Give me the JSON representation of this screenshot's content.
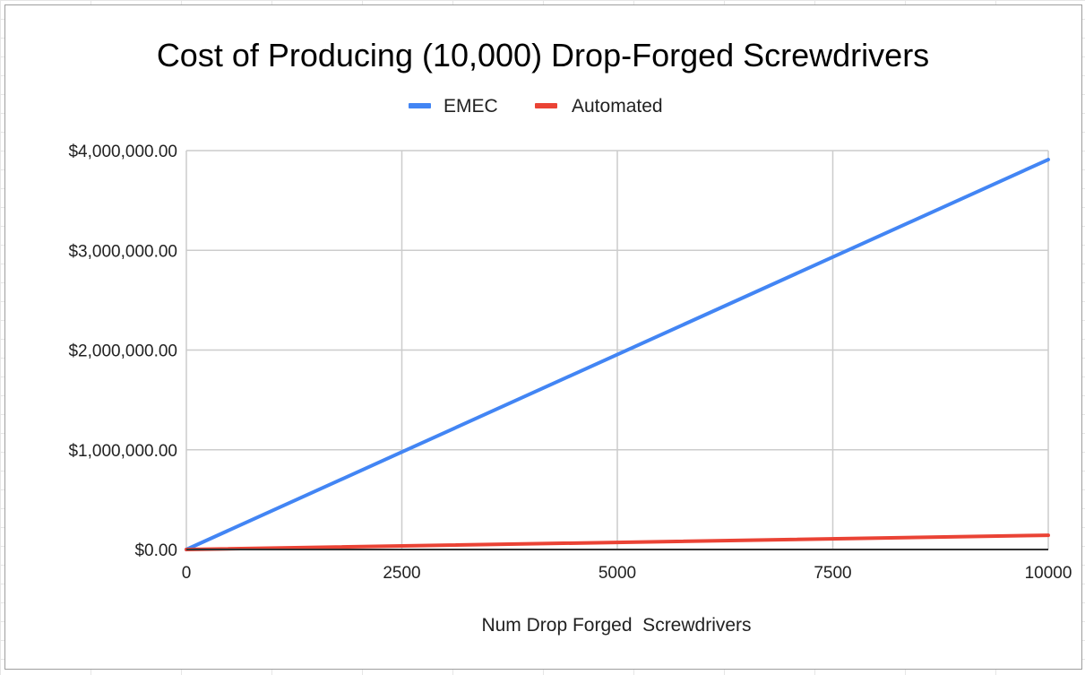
{
  "chart_data": {
    "type": "line",
    "title": "Cost of Producing (10,000) Drop-Forged Screwdrivers",
    "xlabel": "Num Drop Forged  Screwdrivers",
    "ylabel": "",
    "x": [
      0,
      10000
    ],
    "xlim": [
      0,
      10000
    ],
    "ylim": [
      0,
      4000000
    ],
    "xticks": [
      "0",
      "2500",
      "5000",
      "7500",
      "10000"
    ],
    "yticks": [
      "$0.00",
      "$1,000,000.00",
      "$2,000,000.00",
      "$3,000,000.00",
      "$4,000,000.00"
    ],
    "series": [
      {
        "name": "EMEC",
        "values": [
          0,
          3910000
        ],
        "color": "#4285f4"
      },
      {
        "name": "Automated",
        "values": [
          0,
          143000
        ],
        "color": "#ea4335"
      }
    ],
    "grid": true,
    "legend_position": "top"
  }
}
